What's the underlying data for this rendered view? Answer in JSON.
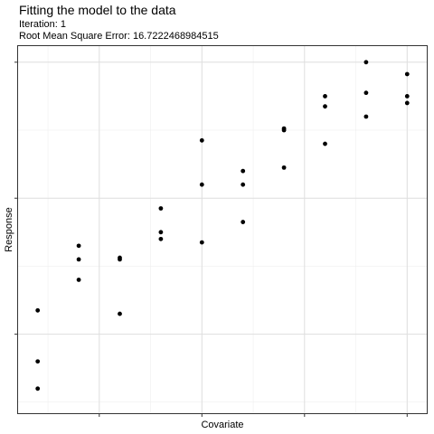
{
  "chart_data": {
    "type": "scatter",
    "title": "Fitting the model to the data",
    "subtitle_lines": [
      "Iteration: 1",
      "Root Mean Square Error: 16.7222468984515"
    ],
    "xlabel": "Covariate",
    "ylabel": "Response",
    "xlim": [
      0.5,
      10.5
    ],
    "ylim": [
      -1.35,
      9.5
    ],
    "x_ticks": [
      2.5,
      5,
      7.5,
      10
    ],
    "y_ticks": [
      1,
      5,
      9
    ],
    "x_tick_labels": [],
    "y_tick_labels": [],
    "grid": true,
    "point_color": "#000000",
    "points": [
      {
        "x": 1,
        "y": 1.7
      },
      {
        "x": 1,
        "y": 0.2
      },
      {
        "x": 1,
        "y": -0.6
      },
      {
        "x": 2,
        "y": 3.6
      },
      {
        "x": 2,
        "y": 3.2
      },
      {
        "x": 2,
        "y": 2.6
      },
      {
        "x": 3,
        "y": 3.25
      },
      {
        "x": 3,
        "y": 3.2
      },
      {
        "x": 3,
        "y": 1.6
      },
      {
        "x": 4,
        "y": 4.7
      },
      {
        "x": 4,
        "y": 4.0
      },
      {
        "x": 4,
        "y": 3.8
      },
      {
        "x": 5,
        "y": 6.7
      },
      {
        "x": 5,
        "y": 5.4
      },
      {
        "x": 5,
        "y": 3.7
      },
      {
        "x": 6,
        "y": 5.8
      },
      {
        "x": 6,
        "y": 5.4
      },
      {
        "x": 6,
        "y": 4.3
      },
      {
        "x": 7,
        "y": 7.05
      },
      {
        "x": 7,
        "y": 7.0
      },
      {
        "x": 7,
        "y": 5.9
      },
      {
        "x": 8,
        "y": 8.0
      },
      {
        "x": 8,
        "y": 7.7
      },
      {
        "x": 8,
        "y": 6.6
      },
      {
        "x": 9,
        "y": 9.0
      },
      {
        "x": 9,
        "y": 8.1
      },
      {
        "x": 9,
        "y": 7.4
      },
      {
        "x": 10,
        "y": 8.65
      },
      {
        "x": 10,
        "y": 8.0
      },
      {
        "x": 10,
        "y": 7.8
      }
    ]
  }
}
